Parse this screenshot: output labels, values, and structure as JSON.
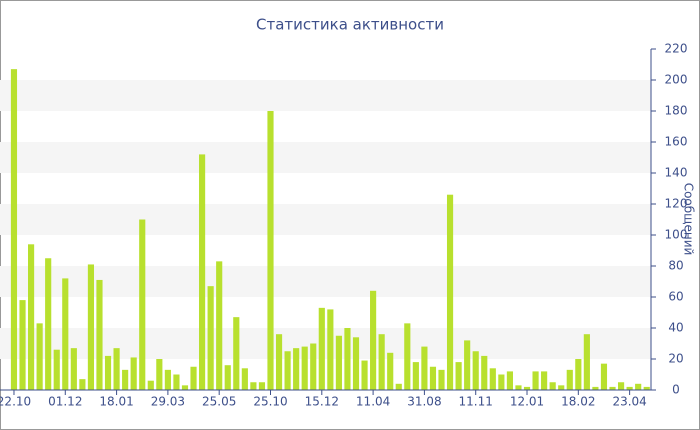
{
  "chart_data": {
    "type": "bar",
    "title": "Статистика активности",
    "y_label": "Сообщений",
    "categories": [
      "22.10",
      null,
      null,
      null,
      null,
      null,
      "01.12",
      null,
      null,
      null,
      null,
      null,
      "18.01",
      null,
      null,
      null,
      null,
      null,
      "29.03",
      null,
      null,
      null,
      null,
      null,
      "25.05",
      null,
      null,
      null,
      null,
      null,
      "25.10",
      null,
      null,
      null,
      null,
      null,
      "15.12",
      null,
      null,
      null,
      null,
      null,
      "11.04",
      null,
      null,
      null,
      null,
      null,
      "31.08",
      null,
      null,
      null,
      null,
      null,
      "11.11",
      null,
      null,
      null,
      null,
      null,
      "12.01",
      null,
      null,
      null,
      null,
      null,
      "18.02",
      null,
      null,
      null,
      null,
      null,
      "23.04",
      null,
      null
    ],
    "values": [
      207,
      58,
      94,
      43,
      85,
      26,
      72,
      27,
      7,
      81,
      71,
      22,
      27,
      13,
      21,
      110,
      6,
      20,
      13,
      10,
      3,
      15,
      152,
      67,
      83,
      16,
      47,
      14,
      5,
      5,
      180,
      36,
      25,
      27,
      28,
      30,
      53,
      52,
      35,
      40,
      34,
      19,
      64,
      36,
      24,
      4,
      43,
      18,
      28,
      15,
      13,
      126,
      18,
      32,
      25,
      22,
      14,
      10,
      12,
      3,
      2,
      12,
      12,
      5,
      3,
      13,
      20,
      36,
      2,
      17,
      2,
      5,
      2,
      4,
      2
    ],
    "color": "#b8e02e",
    "ylim": [
      0,
      220
    ],
    "yticks": [
      0,
      20,
      40,
      60,
      80,
      100,
      120,
      140,
      160,
      180,
      200,
      220
    ],
    "grid": true
  }
}
